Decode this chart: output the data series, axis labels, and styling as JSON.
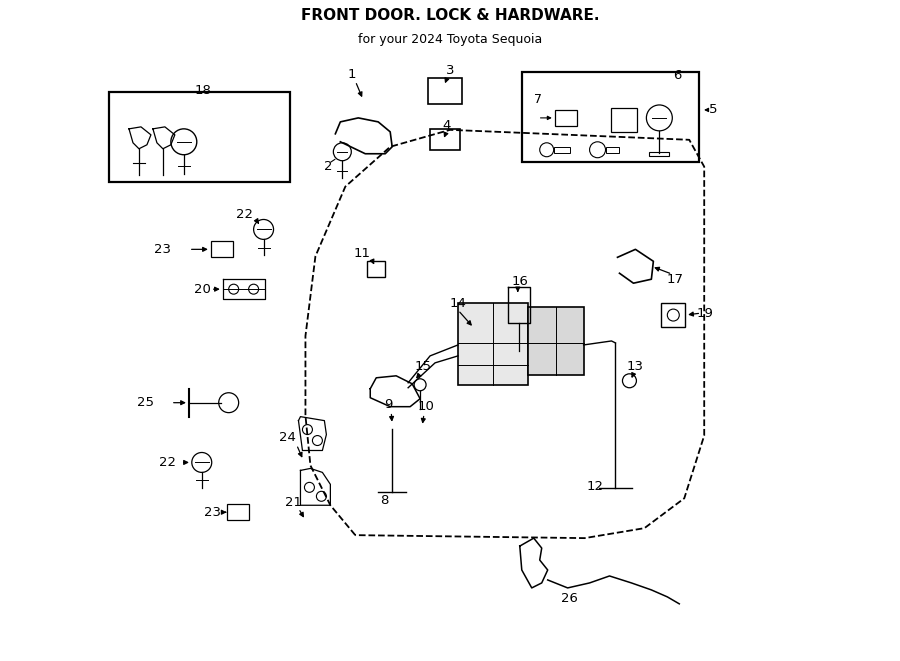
{
  "title": "FRONT DOOR. LOCK & HARDWARE.",
  "subtitle": "for your 2024 Toyota Sequoia",
  "bg_color": "#ffffff",
  "line_color": "#000000",
  "fig_width": 9.0,
  "fig_height": 6.61
}
